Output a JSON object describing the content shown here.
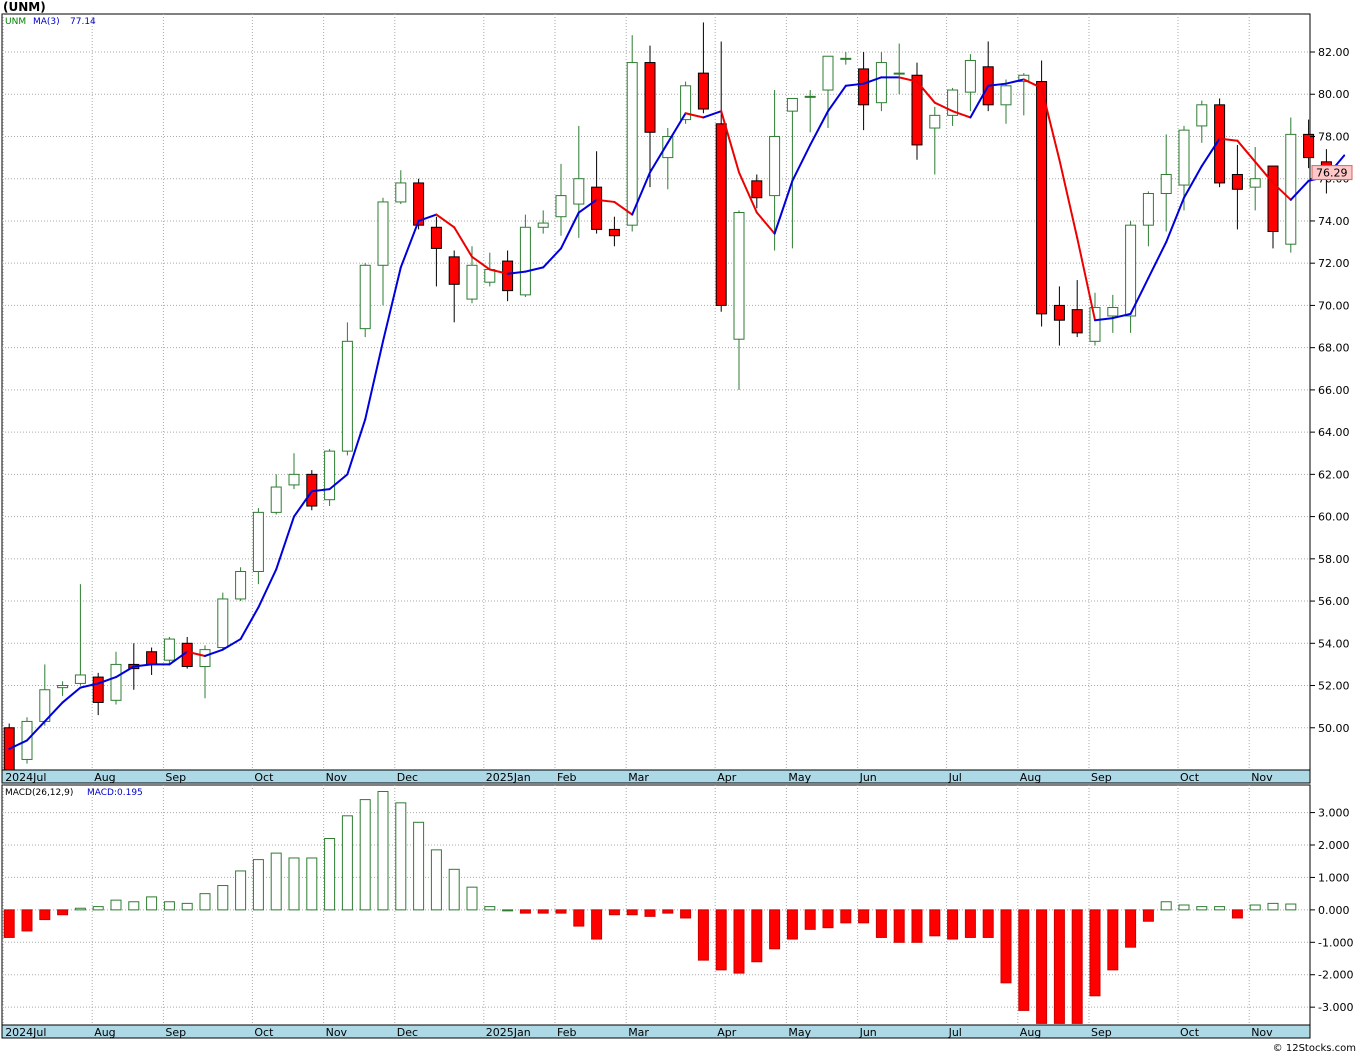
{
  "title": "(UNM)",
  "footer": "© 12Stocks.com",
  "colors": {
    "up": "#2e7d32",
    "down": "#ff0000",
    "ma_up": "#0000dd",
    "ma_down": "#ee0000",
    "macd_label": "#0000cc",
    "legend_symbol": "#008000",
    "last_box": "#ffc8c8",
    "grid": "#aaaaaa",
    "xaxis_band": "#add8e6"
  },
  "chart_data": [
    {
      "type": "candlestick",
      "legend": {
        "symbol": "UNM",
        "ma_label": "MA(3)",
        "ma_value": "77.14"
      },
      "last_price": "76.29",
      "ylim": [
        48.0,
        83.8
      ],
      "yticks": [
        "50.00",
        "52.00",
        "54.00",
        "56.00",
        "58.00",
        "60.00",
        "62.00",
        "64.00",
        "66.00",
        "68.00",
        "70.00",
        "72.00",
        "74.00",
        "76.00",
        "78.00",
        "80.00",
        "82.00"
      ],
      "x_labels": [
        {
          "label": "2024Jul",
          "i": 0
        },
        {
          "label": "Aug",
          "i": 5
        },
        {
          "label": "Sep",
          "i": 9
        },
        {
          "label": "Oct",
          "i": 14
        },
        {
          "label": "Nov",
          "i": 18
        },
        {
          "label": "Dec",
          "i": 22
        },
        {
          "label": "2025Jan",
          "i": 27
        },
        {
          "label": "Feb",
          "i": 31
        },
        {
          "label": "Mar",
          "i": 35
        },
        {
          "label": "Apr",
          "i": 40
        },
        {
          "label": "May",
          "i": 44
        },
        {
          "label": "Jun",
          "i": 48
        },
        {
          "label": "Jul",
          "i": 53
        },
        {
          "label": "Aug",
          "i": 57
        },
        {
          "label": "Sep",
          "i": 61
        },
        {
          "label": "Oct",
          "i": 66
        },
        {
          "label": "Nov",
          "i": 70
        }
      ],
      "ohlc": [
        [
          50.0,
          50.2,
          47.8,
          48.0
        ],
        [
          48.5,
          50.5,
          48.3,
          50.3
        ],
        [
          50.3,
          53.0,
          50.1,
          51.8
        ],
        [
          51.9,
          52.2,
          51.5,
          52.0
        ],
        [
          52.1,
          56.8,
          52.0,
          52.5
        ],
        [
          52.4,
          52.6,
          50.6,
          51.2
        ],
        [
          51.3,
          53.6,
          51.1,
          53.0
        ],
        [
          53.0,
          54.0,
          51.8,
          52.8
        ],
        [
          53.6,
          53.8,
          52.5,
          53.0
        ],
        [
          53.2,
          54.3,
          53.0,
          54.2
        ],
        [
          54.0,
          54.3,
          52.8,
          52.9
        ],
        [
          52.9,
          53.9,
          51.4,
          53.7
        ],
        [
          53.8,
          56.4,
          53.7,
          56.1
        ],
        [
          56.1,
          57.6,
          56.0,
          57.4
        ],
        [
          57.4,
          60.4,
          56.8,
          60.2
        ],
        [
          60.2,
          62.0,
          60.1,
          61.4
        ],
        [
          61.5,
          63.0,
          61.3,
          62.0
        ],
        [
          62.0,
          62.2,
          60.3,
          60.5
        ],
        [
          60.8,
          63.2,
          60.5,
          63.1
        ],
        [
          63.1,
          69.2,
          62.9,
          68.3
        ],
        [
          68.9,
          72.0,
          68.5,
          71.9
        ],
        [
          71.9,
          75.1,
          70.0,
          74.9
        ],
        [
          74.9,
          76.4,
          74.8,
          75.8
        ],
        [
          75.8,
          76.0,
          73.6,
          73.8
        ],
        [
          73.7,
          74.2,
          70.9,
          72.7
        ],
        [
          72.3,
          72.6,
          69.2,
          71.0
        ],
        [
          70.3,
          72.8,
          70.1,
          71.9
        ],
        [
          71.1,
          72.5,
          70.9,
          71.7
        ],
        [
          72.1,
          72.6,
          70.2,
          70.7
        ],
        [
          70.5,
          74.3,
          70.4,
          73.7
        ],
        [
          73.7,
          74.5,
          73.4,
          73.9
        ],
        [
          74.2,
          76.7,
          73.3,
          75.2
        ],
        [
          74.8,
          78.5,
          73.2,
          76.0
        ],
        [
          75.6,
          77.3,
          73.4,
          73.6
        ],
        [
          73.6,
          74.2,
          72.8,
          73.3
        ],
        [
          73.8,
          82.8,
          73.5,
          81.5
        ],
        [
          81.5,
          82.3,
          75.6,
          78.2
        ],
        [
          77.0,
          78.4,
          75.5,
          78.0
        ],
        [
          78.8,
          80.6,
          78.6,
          80.4
        ],
        [
          81.0,
          83.4,
          79.1,
          79.3
        ],
        [
          78.6,
          82.5,
          69.7,
          70.0
        ],
        [
          68.4,
          74.5,
          66.0,
          74.4
        ],
        [
          75.9,
          76.2,
          74.6,
          75.1
        ],
        [
          75.2,
          80.2,
          72.6,
          78.0
        ],
        [
          79.2,
          79.8,
          72.7,
          79.8
        ],
        [
          79.9,
          80.2,
          78.2,
          79.9
        ],
        [
          80.2,
          81.6,
          78.4,
          81.8
        ],
        [
          81.7,
          82.0,
          81.4,
          81.7
        ],
        [
          81.2,
          82.0,
          78.3,
          79.5
        ],
        [
          79.6,
          82.0,
          79.2,
          81.5
        ],
        [
          81.0,
          82.4,
          80.0,
          81.0
        ],
        [
          80.9,
          81.5,
          76.9,
          77.6
        ],
        [
          78.4,
          79.4,
          76.2,
          79.0
        ],
        [
          79.0,
          80.3,
          78.5,
          80.2
        ],
        [
          80.1,
          81.9,
          79.2,
          81.6
        ],
        [
          81.3,
          82.5,
          79.2,
          79.5
        ],
        [
          79.5,
          80.7,
          78.6,
          80.4
        ],
        [
          80.6,
          81.0,
          79.0,
          80.9
        ],
        [
          80.6,
          81.6,
          69.0,
          69.6
        ],
        [
          70.0,
          70.9,
          68.1,
          69.3
        ],
        [
          69.8,
          71.2,
          68.5,
          68.7
        ],
        [
          68.3,
          70.6,
          68.1,
          69.9
        ],
        [
          69.5,
          70.5,
          68.7,
          69.9
        ],
        [
          69.5,
          74.0,
          68.7,
          73.8
        ],
        [
          73.8,
          75.4,
          72.8,
          75.3
        ],
        [
          75.3,
          78.1,
          73.5,
          76.2
        ],
        [
          75.7,
          78.5,
          74.5,
          78.3
        ],
        [
          78.5,
          79.7,
          77.7,
          79.5
        ],
        [
          79.5,
          79.8,
          75.6,
          75.8
        ],
        [
          76.2,
          77.6,
          73.6,
          75.5
        ],
        [
          75.6,
          77.5,
          74.5,
          76.0
        ],
        [
          76.6,
          76.5,
          72.7,
          73.5
        ],
        [
          72.9,
          78.9,
          72.5,
          78.1
        ],
        [
          78.1,
          78.8,
          76.5,
          77.0
        ],
        [
          76.8,
          77.4,
          75.3,
          76.3
        ]
      ],
      "ma3": [
        49.0,
        49.4,
        50.3,
        51.2,
        51.9,
        52.1,
        52.4,
        52.9,
        53.0,
        53.0,
        53.6,
        53.4,
        53.7,
        54.2,
        55.7,
        57.5,
        60.0,
        61.2,
        61.3,
        62.0,
        64.6,
        68.3,
        71.8,
        74.0,
        74.3,
        73.7,
        72.3,
        71.7,
        71.5,
        71.6,
        71.8,
        72.7,
        74.4,
        75.0,
        74.9,
        74.3,
        76.3,
        77.7,
        79.1,
        78.9,
        79.2,
        76.3,
        74.4,
        73.4,
        75.9,
        77.6,
        79.2,
        80.4,
        80.5,
        80.8,
        80.8,
        80.6,
        79.6,
        79.2,
        78.9,
        80.4,
        80.5,
        80.7,
        80.3,
        76.9,
        73.2,
        69.3,
        69.4,
        69.6,
        71.3,
        73.0,
        75.1,
        76.6,
        77.9,
        77.8,
        76.8,
        75.8,
        75.0,
        75.9,
        76.1,
        77.1
      ],
      "ma_color_by_slope": true
    },
    {
      "type": "bar",
      "name": "MACD(26,12,9)",
      "label_text": "MACD:0.195",
      "ylim": [
        -3.55,
        3.85
      ],
      "yticks": [
        "-3.000",
        "-2.000",
        "-1.000",
        "0.000",
        "1.000",
        "2.000",
        "3.000"
      ],
      "values": [
        -0.85,
        -0.65,
        -0.3,
        -0.15,
        0.05,
        0.1,
        0.3,
        0.25,
        0.4,
        0.25,
        0.2,
        0.5,
        0.75,
        1.2,
        1.55,
        1.75,
        1.6,
        1.6,
        2.2,
        2.9,
        3.4,
        3.65,
        3.3,
        2.7,
        1.85,
        1.25,
        0.7,
        0.1,
        0.0,
        -0.1,
        -0.1,
        -0.1,
        -0.5,
        -0.9,
        -0.15,
        -0.15,
        -0.2,
        -0.1,
        -0.25,
        -1.55,
        -1.85,
        -1.95,
        -1.6,
        -1.2,
        -0.9,
        -0.6,
        -0.55,
        -0.4,
        -0.4,
        -0.85,
        -1.0,
        -1.0,
        -0.8,
        -0.9,
        -0.85,
        -0.85,
        -2.25,
        -3.1,
        -3.5,
        -3.5,
        -3.5,
        -2.65,
        -1.85,
        -1.15,
        -0.35,
        0.25,
        0.15,
        0.1,
        0.1,
        -0.25,
        0.15,
        0.2,
        0.18
      ],
      "x_labels": [
        {
          "label": "2024Jul",
          "i": 0
        },
        {
          "label": "Aug",
          "i": 5
        },
        {
          "label": "Sep",
          "i": 9
        },
        {
          "label": "Oct",
          "i": 14
        },
        {
          "label": "Nov",
          "i": 18
        },
        {
          "label": "Dec",
          "i": 22
        },
        {
          "label": "2025Jan",
          "i": 27
        },
        {
          "label": "Feb",
          "i": 31
        },
        {
          "label": "Mar",
          "i": 35
        },
        {
          "label": "Apr",
          "i": 40
        },
        {
          "label": "May",
          "i": 44
        },
        {
          "label": "Jun",
          "i": 48
        },
        {
          "label": "Jul",
          "i": 53
        },
        {
          "label": "Aug",
          "i": 57
        },
        {
          "label": "Sep",
          "i": 61
        },
        {
          "label": "Oct",
          "i": 66
        },
        {
          "label": "Nov",
          "i": 70
        }
      ]
    }
  ]
}
